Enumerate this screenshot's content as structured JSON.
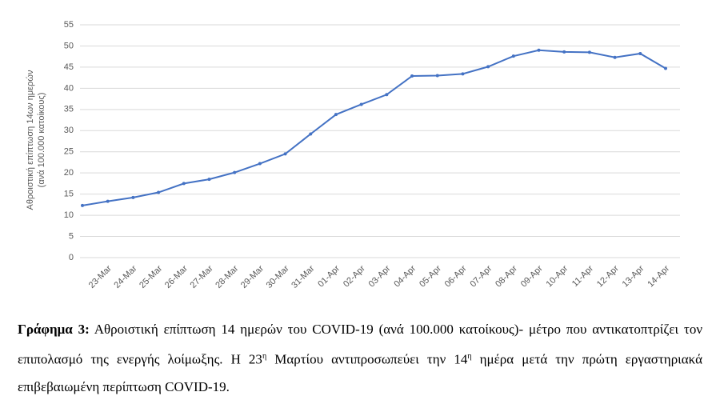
{
  "chart_data": {
    "type": "line",
    "ylabel": [
      "Αθροιστική επίπτωση 14ων ημερών",
      "(ανά 100.000 κατοίκους)"
    ],
    "categories": [
      null,
      "23-Mar",
      "24-Mar",
      "25-Mar",
      "26-Mar",
      "27-Mar",
      "28-Mar",
      "29-Mar",
      "30-Mar",
      "31-Mar",
      "01-Apr",
      "02-Apr",
      "03-Apr",
      "04-Apr",
      "05-Apr",
      "06-Apr",
      "07-Apr",
      "08-Apr",
      "09-Apr",
      "10-Apr",
      "11-Apr",
      "12-Apr",
      "13-Apr",
      "14-Apr"
    ],
    "series": [
      {
        "name": "Αθροιστική επίπτωση",
        "color": "#4472c4",
        "values": [
          12.3,
          13.3,
          14.2,
          15.4,
          17.5,
          18.5,
          20.1,
          22.2,
          24.5,
          29.2,
          33.8,
          36.2,
          38.5,
          42.9,
          43.0,
          43.4,
          45.1,
          47.6,
          49.0,
          48.6,
          48.5,
          47.3,
          48.2,
          44.7
        ]
      }
    ],
    "ylim": [
      0,
      55
    ],
    "yticks": [
      0,
      5,
      10,
      15,
      20,
      25,
      30,
      35,
      40,
      45,
      50,
      55
    ],
    "grid": true,
    "caption": {
      "label": "Γράφημα 3:",
      "parts": [
        "Αθροιστική επίπτωση 14 ημερών του COVID-19 (ανά 100.000 κατοίκους)- μέτρο που αντικατοπτρίζει τον επιπολασμό της ενεργής λοίμωξης. Η 23",
        "η",
        " Μαρτίου αντιπροσωπεύει την 14",
        "η",
        " ημέρα μετά την πρώτη εργαστηριακά επιβεβαιωμένη περίπτωση COVID-19."
      ]
    }
  }
}
